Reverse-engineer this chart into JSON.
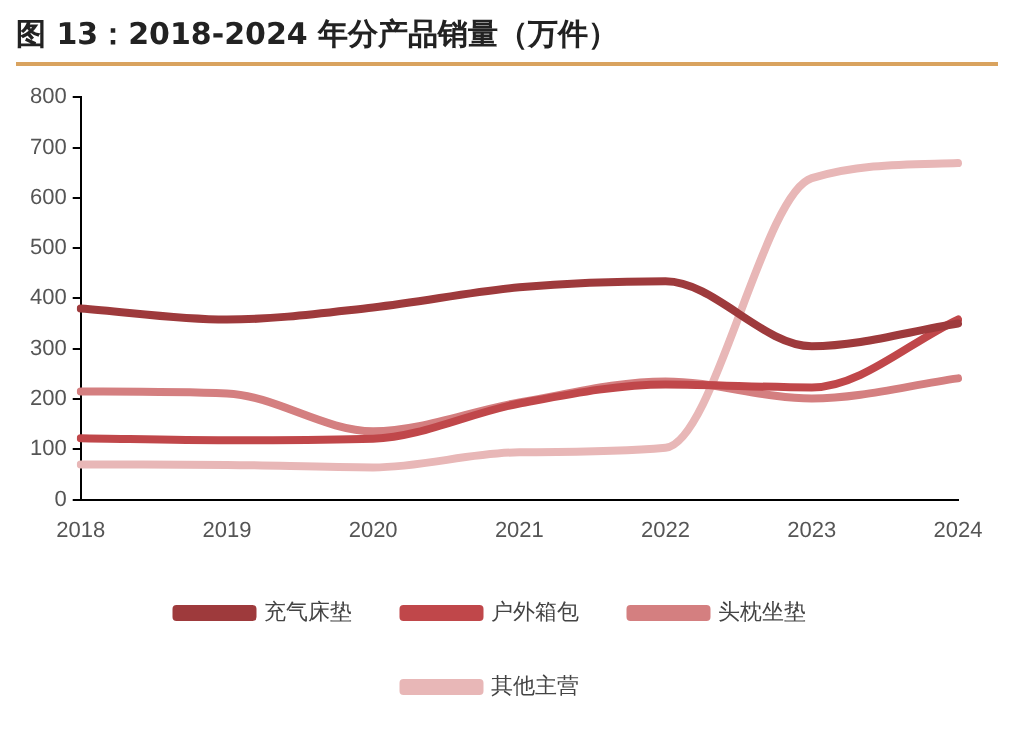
{
  "chart_data": {
    "type": "line",
    "title": "图 13：2018-2024 年分产品销量（万件）",
    "categories": [
      "2018",
      "2019",
      "2020",
      "2021",
      "2022",
      "2023",
      "2024"
    ],
    "series": [
      {
        "name": "充气床垫",
        "color": "#9e3a3c",
        "values": [
          380,
          358,
          382,
          422,
          434,
          305,
          350
        ]
      },
      {
        "name": "户外箱包",
        "color": "#c0474a",
        "values": [
          122,
          118,
          121,
          191,
          229,
          223,
          358
        ]
      },
      {
        "name": "头枕坐垫",
        "color": "#d47f80",
        "values": [
          215,
          211,
          136,
          193,
          235,
          201,
          241
        ]
      },
      {
        "name": "其他主营",
        "color": "#e8b7b7",
        "values": [
          70,
          69,
          64,
          94,
          103,
          639,
          669
        ]
      }
    ],
    "ylim": [
      0,
      800
    ],
    "yticks": [
      0,
      100,
      200,
      300,
      400,
      500,
      600,
      700,
      800
    ],
    "grid": false,
    "legend": "bottom",
    "marker": "none",
    "line_style": "solid"
  }
}
